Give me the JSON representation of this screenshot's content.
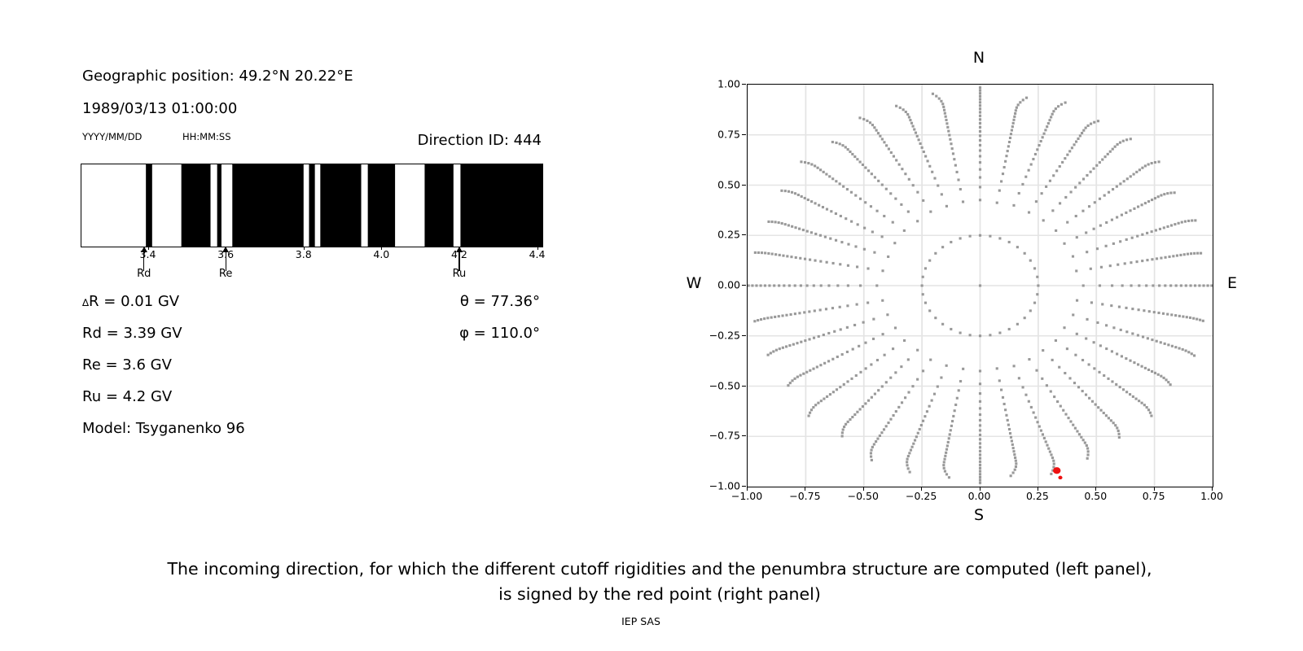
{
  "header": {
    "geo_position": "Geographic position: 49.2°N 20.22°E",
    "datetime": "1989/03/13 01:00:00",
    "date_format": "YYYY/MM/DD",
    "time_format": "HH:MM:SS",
    "direction_id": "Direction ID: 444"
  },
  "info": {
    "delta_symbol": "∆",
    "delta_rest": "R = 0.01 GV",
    "rd": "Rd = 3.39 GV",
    "re": "Re = 3.6 GV",
    "ru": "Ru = 4.2 GV",
    "theta": "θ = 77.36°",
    "phi": "φ = 110.0°",
    "model": "Model: Tsyganenko 96"
  },
  "caption": {
    "line1": "The incoming direction, for which the different cutoff rigidities and the penumbra structure are computed (left panel),",
    "line2": "is signed by the red point (right panel)",
    "credit": "IEP SAS"
  },
  "chart_data": [
    {
      "type": "bar",
      "name": "penumbra-barcode",
      "xlabel": "Rigidity (GV)",
      "xlim": [
        3.2274,
        4.4114
      ],
      "ticks": [
        3.4,
        3.6,
        3.8,
        4.0,
        4.2,
        4.4
      ],
      "tick_labels": [
        "3.4",
        "3.6",
        "3.8",
        "4.0",
        "4.2",
        "4.4"
      ],
      "black_bands_gv": [
        [
          3.393,
          3.409
        ],
        [
          3.484,
          3.559
        ],
        [
          3.576,
          3.587
        ],
        [
          3.615,
          3.798
        ],
        [
          3.812,
          3.827
        ],
        [
          3.841,
          3.946
        ],
        [
          3.963,
          4.033
        ],
        [
          4.109,
          4.183
        ],
        [
          4.201,
          4.4114
        ]
      ],
      "markers": [
        {
          "label": "Rd",
          "value": 3.39
        },
        {
          "label": "Re",
          "value": 3.6
        },
        {
          "label": "Ru",
          "value": 4.2
        }
      ],
      "band_color": "#000000",
      "bg_color": "#ffffff"
    },
    {
      "type": "scatter",
      "name": "asymptotic-directions",
      "xlim": [
        -1,
        1
      ],
      "ylim": [
        -1,
        1
      ],
      "x_tick_values": [
        -1,
        -0.75,
        -0.5,
        -0.25,
        0,
        0.25,
        0.5,
        0.75,
        1
      ],
      "x_tick_labels": [
        "−1.00",
        "−0.75",
        "−0.50",
        "−0.25",
        "0.00",
        "0.25",
        "0.50",
        "0.75",
        "1.00"
      ],
      "y_tick_values": [
        1,
        0.75,
        0.5,
        0.25,
        0,
        -0.25,
        -0.5,
        -0.75,
        -1
      ],
      "y_tick_labels": [
        "1.00",
        "0.75",
        "0.50",
        "0.25",
        "0.00",
        "−0.25",
        "−0.50",
        "−0.75",
        "−1.00"
      ],
      "grid": true,
      "grid_values": [
        -0.75,
        -0.5,
        -0.25,
        0,
        0.25,
        0.5,
        0.75
      ],
      "compass": {
        "n": "N",
        "e": "E",
        "s": "S",
        "w": "W"
      },
      "spokes": {
        "count": 36,
        "step_deg": 10,
        "r_start": 0.25,
        "r_tip": 0.975,
        "r_tip_horizontal": 1.06,
        "dots_per_spoke": 24,
        "radius_exponent": 0.45,
        "tip_hook": 0.035,
        "tip_jitter": [
          0,
          -0.012,
          0.006,
          -0.02,
          0.01
        ]
      },
      "ring": {
        "radius": 0.25,
        "dots": 36
      },
      "center_dot": {
        "x": 0,
        "y": 0
      },
      "red_point": {
        "x": 0.33,
        "y": -0.92
      },
      "red_tail": {
        "x": 0.345,
        "y": -0.955
      },
      "dot_color": "#999999",
      "red_color": "#ee1111",
      "grid_color": "#e4e4e4"
    }
  ]
}
